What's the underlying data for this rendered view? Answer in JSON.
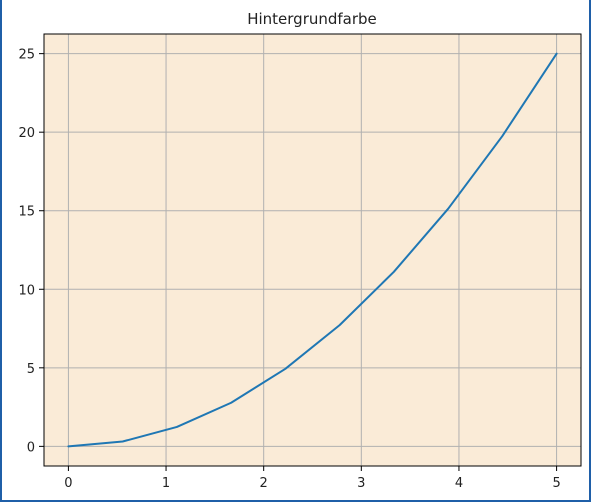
{
  "chart_data": {
    "type": "line",
    "title": "Hintergrundfarbe",
    "xlabel": "",
    "ylabel": "",
    "xlim": [
      -0.25,
      5.25
    ],
    "ylim": [
      -1.25,
      26.25
    ],
    "x_ticks": [
      0,
      1,
      2,
      3,
      4,
      5
    ],
    "y_ticks": [
      0,
      5,
      10,
      15,
      20,
      25
    ],
    "grid": true,
    "background_color": "#faebd7",
    "series": [
      {
        "color": "#1f77b4",
        "x": [
          0,
          0.5556,
          1.1111,
          1.6667,
          2.2222,
          2.7778,
          3.3333,
          3.8889,
          4.4444,
          5
        ],
        "y": [
          0,
          0.3086,
          1.2346,
          2.7778,
          4.9383,
          7.716,
          11.1111,
          15.1235,
          19.7531,
          25
        ]
      }
    ]
  }
}
